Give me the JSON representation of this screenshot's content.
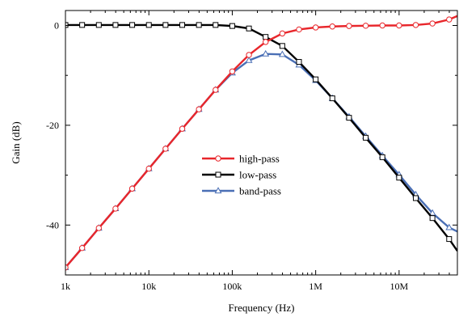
{
  "chart_data": {
    "type": "line",
    "x_scale": "log",
    "xlabel": "Frequency (Hz)",
    "ylabel": "Gain (dB)",
    "xlim": [
      1000,
      50000000
    ],
    "ylim": [
      -50,
      3
    ],
    "x_ticks": [
      1000,
      10000,
      100000,
      1000000,
      10000000
    ],
    "x_tick_labels": [
      "1k",
      "10k",
      "100k",
      "1M",
      "10M"
    ],
    "y_ticks": [
      0,
      -20,
      -40
    ],
    "y_tick_labels": [
      "0",
      "-20",
      "-40"
    ],
    "grid": false,
    "legend_position": "center",
    "series": [
      {
        "name": "high-pass",
        "color": "#e8262b",
        "marker": "circle",
        "x": [
          1000,
          1585,
          2512,
          3981,
          6310,
          10000,
          15849,
          25119,
          39811,
          63096,
          100000,
          158489,
          251189,
          398107,
          630957,
          1000000,
          1584893,
          2511886,
          3981072,
          6309573,
          10000000,
          15848932,
          25118864,
          39810717,
          50000000
        ],
        "values": [
          -48.5,
          -44.6,
          -40.6,
          -36.7,
          -32.7,
          -28.7,
          -24.7,
          -20.7,
          -16.8,
          -12.9,
          -9.2,
          -5.9,
          -3.3,
          -1.6,
          -0.8,
          -0.4,
          -0.2,
          -0.1,
          -0.05,
          0,
          0,
          0.1,
          0.4,
          1.2,
          1.9
        ]
      },
      {
        "name": "low-pass",
        "color": "#000000",
        "marker": "square",
        "x": [
          1000,
          1585,
          2512,
          3981,
          6310,
          10000,
          15849,
          25119,
          39811,
          63096,
          100000,
          158489,
          251189,
          398107,
          630957,
          1000000,
          1584893,
          2511886,
          3981072,
          6309573,
          10000000,
          15848932,
          25118864,
          39810717,
          50000000
        ],
        "values": [
          0.1,
          0.1,
          0.1,
          0.1,
          0.1,
          0.1,
          0.1,
          0.1,
          0.1,
          0.1,
          -0.1,
          -0.6,
          -2.3,
          -4.1,
          -7.3,
          -10.8,
          -14.6,
          -18.5,
          -22.5,
          -26.4,
          -30.5,
          -34.6,
          -38.6,
          -42.8,
          -45.2
        ]
      },
      {
        "name": "band-pass",
        "color": "#4a6fb5",
        "marker": "triangle",
        "x": [
          1000,
          1585,
          2512,
          3981,
          6310,
          10000,
          15849,
          25119,
          39811,
          63096,
          100000,
          158489,
          251189,
          398107,
          630957,
          1000000,
          1584893,
          2511886,
          3981072,
          6309573,
          10000000,
          15848932,
          25118864,
          39810717,
          50000000
        ],
        "values": [
          -48.5,
          -44.6,
          -40.6,
          -36.7,
          -32.7,
          -28.7,
          -24.7,
          -20.7,
          -16.8,
          -12.9,
          -9.5,
          -7.0,
          -5.7,
          -5.8,
          -7.9,
          -11.0,
          -14.6,
          -18.3,
          -22.2,
          -26.1,
          -29.9,
          -33.9,
          -37.6,
          -40.5,
          -41.3
        ]
      }
    ]
  }
}
